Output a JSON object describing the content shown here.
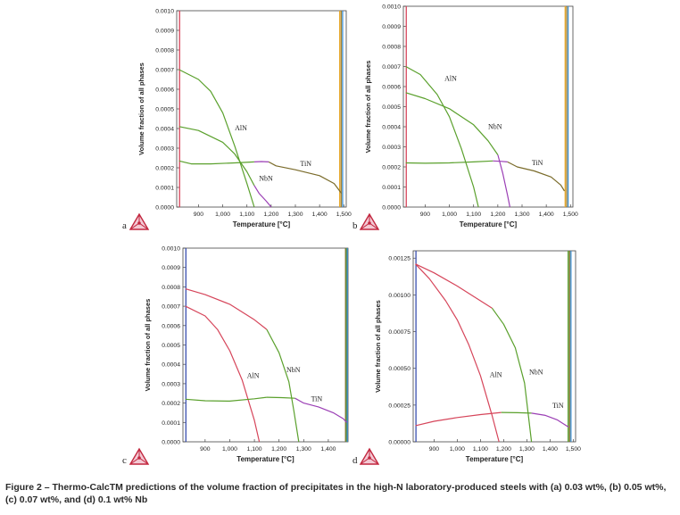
{
  "caption": "Figure 2 – Thermo-CalcTM predictions of the volume fraction of precipitates in the high-N laboratory-produced steels with (a) 0.03 wt%, (b) 0.05 wt%, (c) 0.07 wt%, and (d) 0.1 wt% Nb",
  "chart_data": [
    {
      "panel": "a",
      "type": "line",
      "xlabel": "Temperature [°C]",
      "ylabel": "Volume fraction of all phases",
      "xlim": [
        810,
        1510
      ],
      "ylim": [
        0,
        0.001
      ],
      "xticks": [
        900,
        1000,
        1100,
        1200,
        1300,
        1400,
        1500
      ],
      "xticklabels": [
        "900",
        "1,000",
        "1,100",
        "1,200",
        "1,300",
        "1,400",
        "1,500"
      ],
      "yticks": [
        0,
        0.0001,
        0.0002,
        0.0003,
        0.0004,
        0.0005,
        0.0006,
        0.0007,
        0.0008,
        0.0009,
        0.001
      ],
      "yticklabels": [
        "0.0000",
        "0.0001",
        "0.0002",
        "0.0003",
        "0.0004",
        "0.0005",
        "0.0006",
        "0.0007",
        "0.0008",
        "0.0009",
        "0.0010"
      ],
      "labels": [
        {
          "text": "AlN",
          "x": 1050,
          "y": 0.00039
        },
        {
          "text": "NbN",
          "x": 1150,
          "y": 0.000135
        },
        {
          "text": "TiN",
          "x": 1320,
          "y": 0.00021
        }
      ],
      "series": [
        {
          "name": "AlN",
          "color": "#5aa02c",
          "x": [
            820,
            900,
            950,
            1000,
            1050,
            1100,
            1130
          ],
          "y": [
            0.0007,
            0.00065,
            0.00059,
            0.00048,
            0.00031,
            0.00012,
            0
          ]
        },
        {
          "name": "NbN",
          "color": "#5aa02c",
          "x": [
            820,
            900,
            1000,
            1050,
            1100,
            1130
          ],
          "y": [
            0.00041,
            0.00039,
            0.00033,
            0.00027,
            0.00018,
            0.00011
          ]
        },
        {
          "name": "NbN",
          "color": "#9b3fb5",
          "x": [
            1130,
            1150,
            1180,
            1200
          ],
          "y": [
            0.00011,
            7e-05,
            3e-05,
            0
          ]
        },
        {
          "name": "",
          "color": "#5aa02c",
          "x": [
            820,
            870,
            950,
            1050,
            1130
          ],
          "y": [
            0.000235,
            0.00022,
            0.00022,
            0.000225,
            0.00023
          ]
        },
        {
          "name": "",
          "color": "#9b3fb5",
          "x": [
            1130,
            1160,
            1190
          ],
          "y": [
            0.00023,
            0.000232,
            0.00023
          ]
        },
        {
          "name": "TiN",
          "color": "#7a6b2a",
          "x": [
            1190,
            1220,
            1300,
            1400,
            1460,
            1490
          ],
          "y": [
            0.00023,
            0.00021,
            0.00019,
            0.00016,
            0.00012,
            7e-05
          ]
        }
      ],
      "vlines": [
        {
          "x": 822,
          "color": "#d6455a"
        },
        {
          "x": 1483,
          "color": "#e8a92a"
        },
        {
          "x": 1489,
          "color": "#a07d2a"
        },
        {
          "x": 1495,
          "color": "#3a8ccf"
        }
      ]
    },
    {
      "panel": "b",
      "type": "line",
      "xlabel": "Temperature [°C]",
      "ylabel": "Volume fraction of all phases",
      "xlim": [
        810,
        1510
      ],
      "ylim": [
        0,
        0.001
      ],
      "xticks": [
        900,
        1000,
        1100,
        1200,
        1300,
        1400,
        1500
      ],
      "xticklabels": [
        "900",
        "1,000",
        "1,100",
        "1,200",
        "1,300",
        "1,400",
        "1,500"
      ],
      "yticks": [
        0,
        0.0001,
        0.0002,
        0.0003,
        0.0004,
        0.0005,
        0.0006,
        0.0007,
        0.0008,
        0.0009,
        0.001
      ],
      "yticklabels": [
        "0.0000",
        "0.0001",
        "0.0002",
        "0.0003",
        "0.0004",
        "0.0005",
        "0.0006",
        "0.0007",
        "0.0008",
        "0.0009",
        "0.0010"
      ],
      "labels": [
        {
          "text": "AlN",
          "x": 980,
          "y": 0.00063
        },
        {
          "text": "NbN",
          "x": 1160,
          "y": 0.00039
        },
        {
          "text": "TiN",
          "x": 1340,
          "y": 0.00021
        }
      ],
      "series": [
        {
          "name": "AlN",
          "color": "#5aa02c",
          "x": [
            820,
            880,
            950,
            1000,
            1050,
            1100,
            1120
          ],
          "y": [
            0.0007,
            0.00066,
            0.00056,
            0.00045,
            0.00029,
            0.0001,
            0
          ]
        },
        {
          "name": "NbN",
          "color": "#5aa02c",
          "x": [
            820,
            900,
            1000,
            1100,
            1160,
            1200
          ],
          "y": [
            0.00057,
            0.00054,
            0.00049,
            0.00041,
            0.00033,
            0.00026
          ]
        },
        {
          "name": "NbN",
          "color": "#9b3fb5",
          "x": [
            1200,
            1220,
            1240,
            1250
          ],
          "y": [
            0.00026,
            0.00017,
            6e-05,
            0
          ]
        },
        {
          "name": "",
          "color": "#5aa02c",
          "x": [
            820,
            900,
            1000,
            1100,
            1180
          ],
          "y": [
            0.00022,
            0.000218,
            0.00022,
            0.000225,
            0.00023
          ]
        },
        {
          "name": "",
          "color": "#9b3fb5",
          "x": [
            1180,
            1210,
            1240
          ],
          "y": [
            0.00023,
            0.000228,
            0.000225
          ]
        },
        {
          "name": "TiN",
          "color": "#7a6b2a",
          "x": [
            1240,
            1280,
            1350,
            1420,
            1460,
            1475
          ],
          "y": [
            0.000225,
            0.0002,
            0.00018,
            0.00015,
            0.00011,
            8e-05
          ]
        }
      ],
      "vlines": [
        {
          "x": 822,
          "color": "#d6455a"
        },
        {
          "x": 1478,
          "color": "#e8a92a"
        },
        {
          "x": 1484,
          "color": "#a07d2a"
        },
        {
          "x": 1490,
          "color": "#3a8ccf"
        }
      ]
    },
    {
      "panel": "c",
      "type": "line",
      "xlabel": "Temperature [°C]",
      "ylabel": "Volume fraction of all phases",
      "xlim": [
        810,
        1480
      ],
      "ylim": [
        0,
        0.001
      ],
      "xticks": [
        900,
        1000,
        1100,
        1200,
        1300,
        1400
      ],
      "xticklabels": [
        "900",
        "1,000",
        "1,100",
        "1,200",
        "1,300",
        "1,400"
      ],
      "yticks": [
        0,
        0.0001,
        0.0002,
        0.0003,
        0.0004,
        0.0005,
        0.0006,
        0.0007,
        0.0008,
        0.0009,
        0.001
      ],
      "yticklabels": [
        "0.0000",
        "0.0001",
        "0.0002",
        "0.0003",
        "0.0004",
        "0.0005",
        "0.0006",
        "0.0007",
        "0.0008",
        "0.0009",
        "0.0010"
      ],
      "labels": [
        {
          "text": "AlN",
          "x": 1070,
          "y": 0.00033
        },
        {
          "text": "NbN",
          "x": 1230,
          "y": 0.00036
        },
        {
          "text": "TiN",
          "x": 1330,
          "y": 0.00021
        }
      ],
      "series": [
        {
          "name": "AlN",
          "color": "#d6455a",
          "x": [
            820,
            900,
            950,
            1000,
            1050,
            1100,
            1120
          ],
          "y": [
            0.0007,
            0.00065,
            0.00058,
            0.00047,
            0.00032,
            0.00011,
            0
          ]
        },
        {
          "name": "NbN",
          "color": "#d6455a",
          "x": [
            820,
            900,
            1000,
            1100,
            1150
          ],
          "y": [
            0.00079,
            0.00076,
            0.00071,
            0.00063,
            0.00058
          ]
        },
        {
          "name": "NbN",
          "color": "#5aa02c",
          "x": [
            1150,
            1200,
            1240,
            1260,
            1280
          ],
          "y": [
            0.00058,
            0.00046,
            0.00031,
            0.00016,
            0
          ]
        },
        {
          "name": "",
          "color": "#5aa02c",
          "x": [
            820,
            900,
            1000,
            1100,
            1150
          ],
          "y": [
            0.00022,
            0.000212,
            0.00021,
            0.000222,
            0.00023
          ]
        },
        {
          "name": "",
          "color": "#5aa02c",
          "x": [
            1150,
            1210,
            1265
          ],
          "y": [
            0.00023,
            0.000228,
            0.000225
          ]
        },
        {
          "name": "TiN",
          "color": "#9b3fb5",
          "x": [
            1265,
            1300,
            1360,
            1420,
            1460,
            1475
          ],
          "y": [
            0.000225,
            0.0002,
            0.00018,
            0.00015,
            0.00012,
            0.0001
          ]
        }
      ],
      "vlines": [
        {
          "x": 822,
          "color": "#3b4fb0"
        },
        {
          "x": 1470,
          "color": "#7a6b2a"
        },
        {
          "x": 1474,
          "color": "#5aa02c"
        },
        {
          "x": 1477,
          "color": "#3a8ccf"
        }
      ]
    },
    {
      "panel": "d",
      "type": "line",
      "xlabel": "Temperature [°C]",
      "ylabel": "Volume fraction of all phases",
      "xlim": [
        810,
        1510
      ],
      "ylim": [
        0,
        0.0013
      ],
      "xticks": [
        900,
        1000,
        1100,
        1200,
        1300,
        1400,
        1500
      ],
      "xticklabels": [
        "900",
        "1,000",
        "1,100",
        "1,200",
        "1,300",
        "1,400",
        "1,500"
      ],
      "yticks": [
        0,
        0.00025,
        0.0005,
        0.00075,
        0.001,
        0.00125
      ],
      "yticklabels": [
        "0.00000",
        "0.00025",
        "0.00050",
        "0.00075",
        "0.00100",
        "0.00125"
      ],
      "labels": [
        {
          "text": "AlN",
          "x": 1140,
          "y": 0.00044
        },
        {
          "text": "NbN",
          "x": 1310,
          "y": 0.00046
        },
        {
          "text": "TiN",
          "x": 1410,
          "y": 0.00023
        }
      ],
      "series": [
        {
          "name": "AlN",
          "color": "#d6455a",
          "x": [
            820,
            880,
            950,
            1000,
            1050,
            1100,
            1150,
            1180
          ],
          "y": [
            0.00121,
            0.00111,
            0.00096,
            0.00083,
            0.00066,
            0.00045,
            0.00018,
            0
          ]
        },
        {
          "name": "NbN",
          "color": "#d6455a",
          "x": [
            820,
            900,
            1000,
            1100,
            1150
          ],
          "y": [
            0.00121,
            0.00115,
            0.00106,
            0.00096,
            0.00091
          ]
        },
        {
          "name": "NbN",
          "color": "#5aa02c",
          "x": [
            1150,
            1200,
            1250,
            1290,
            1320
          ],
          "y": [
            0.00091,
            0.0008,
            0.00064,
            0.0004,
            0
          ]
        },
        {
          "name": "",
          "color": "#d6455a",
          "x": [
            820,
            900,
            1000,
            1100,
            1190
          ],
          "y": [
            0.00011,
            0.00014,
            0.000165,
            0.000185,
            0.0002
          ]
        },
        {
          "name": "",
          "color": "#5aa02c",
          "x": [
            1190,
            1260,
            1320
          ],
          "y": [
            0.0002,
            0.000198,
            0.000195
          ]
        },
        {
          "name": "TiN",
          "color": "#9b3fb5",
          "x": [
            1320,
            1380,
            1430,
            1460,
            1480
          ],
          "y": [
            0.000195,
            0.00018,
            0.00015,
            0.00012,
            0.0001
          ]
        }
      ],
      "vlines": [
        {
          "x": 822,
          "color": "#3b4fb0"
        },
        {
          "x": 1478,
          "color": "#5aa02c"
        },
        {
          "x": 1484,
          "color": "#7a6b2a"
        },
        {
          "x": 1490,
          "color": "#3a8ccf"
        }
      ]
    }
  ]
}
